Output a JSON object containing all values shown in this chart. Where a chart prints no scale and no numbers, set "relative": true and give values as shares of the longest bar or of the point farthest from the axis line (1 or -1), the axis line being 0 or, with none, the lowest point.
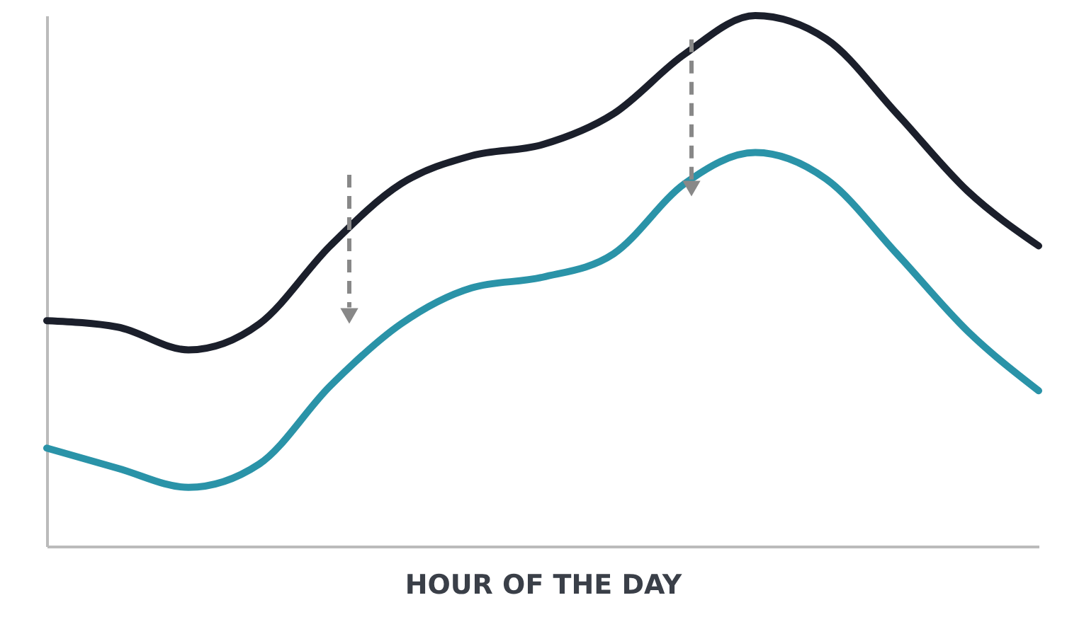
{
  "chart_data": {
    "type": "line",
    "relative": true,
    "xlabel": "HOUR OF THE DAY",
    "grid": false,
    "marker": "none",
    "line_style": "solid",
    "categories": [
      null,
      null,
      null,
      null,
      null,
      null,
      null,
      null,
      null,
      null,
      null,
      null,
      null,
      null,
      null
    ],
    "series": [
      {
        "color": "#1b1f2b",
        "values": [
          0.425,
          0.413,
          0.37,
          0.419,
          0.566,
          0.683,
          0.736,
          0.757,
          0.815,
          0.927,
          1,
          0.956,
          0.815,
          0.669,
          0.566
        ]
      },
      {
        "color": "#2a93a8",
        "values": [
          0.185,
          0.147,
          0.111,
          0.155,
          0.302,
          0.419,
          0.487,
          0.507,
          0.551,
          0.683,
          0.742,
          0.692,
          0.551,
          0.405,
          0.293
        ]
      }
    ]
  }
}
